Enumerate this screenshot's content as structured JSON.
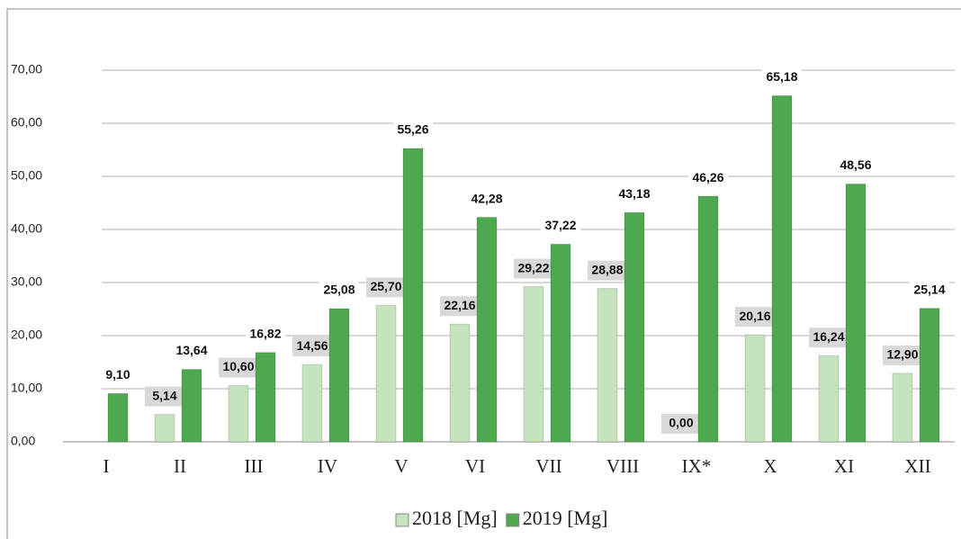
{
  "chart_data": {
    "type": "bar",
    "categories": [
      "I",
      "II",
      "III",
      "IV",
      "V",
      "VI",
      "VII",
      "VIII",
      "IX*",
      "X",
      "XI",
      "XII"
    ],
    "series": [
      {
        "name": "2018 [Mg]",
        "color": "#c5e3bc",
        "values": [
          null,
          5.14,
          10.6,
          14.56,
          25.7,
          22.16,
          29.22,
          28.88,
          0.0,
          20.16,
          16.24,
          12.9
        ],
        "value_labels": [
          null,
          "5,14",
          "10,60",
          "14,56",
          "25,70",
          "22,16",
          "29,22",
          "28,88",
          "0,00",
          "20,16",
          "16,24",
          "12,90"
        ]
      },
      {
        "name": "2019 [Mg]",
        "color": "#4da84f",
        "values": [
          9.1,
          13.64,
          16.82,
          25.08,
          55.26,
          42.28,
          37.22,
          43.18,
          46.26,
          65.18,
          48.56,
          25.14
        ],
        "value_labels": [
          "9,10",
          "13,64",
          "16,82",
          "25,08",
          "55,26",
          "42,28",
          "37,22",
          "43,18",
          "46,26",
          "65,18",
          "48,56",
          "25,14"
        ]
      }
    ],
    "ylim": [
      0,
      80
    ],
    "yticks": [
      {
        "value": 0,
        "label": "0,00"
      },
      {
        "value": 10,
        "label": "10,00"
      },
      {
        "value": 20,
        "label": "20,00"
      },
      {
        "value": 30,
        "label": "30,00"
      },
      {
        "value": 40,
        "label": "40,00"
      },
      {
        "value": 50,
        "label": "50,00"
      },
      {
        "value": 60,
        "label": "60,00"
      },
      {
        "value": 70,
        "label": "70,00"
      }
    ],
    "grid": true,
    "legend": "bottom"
  }
}
